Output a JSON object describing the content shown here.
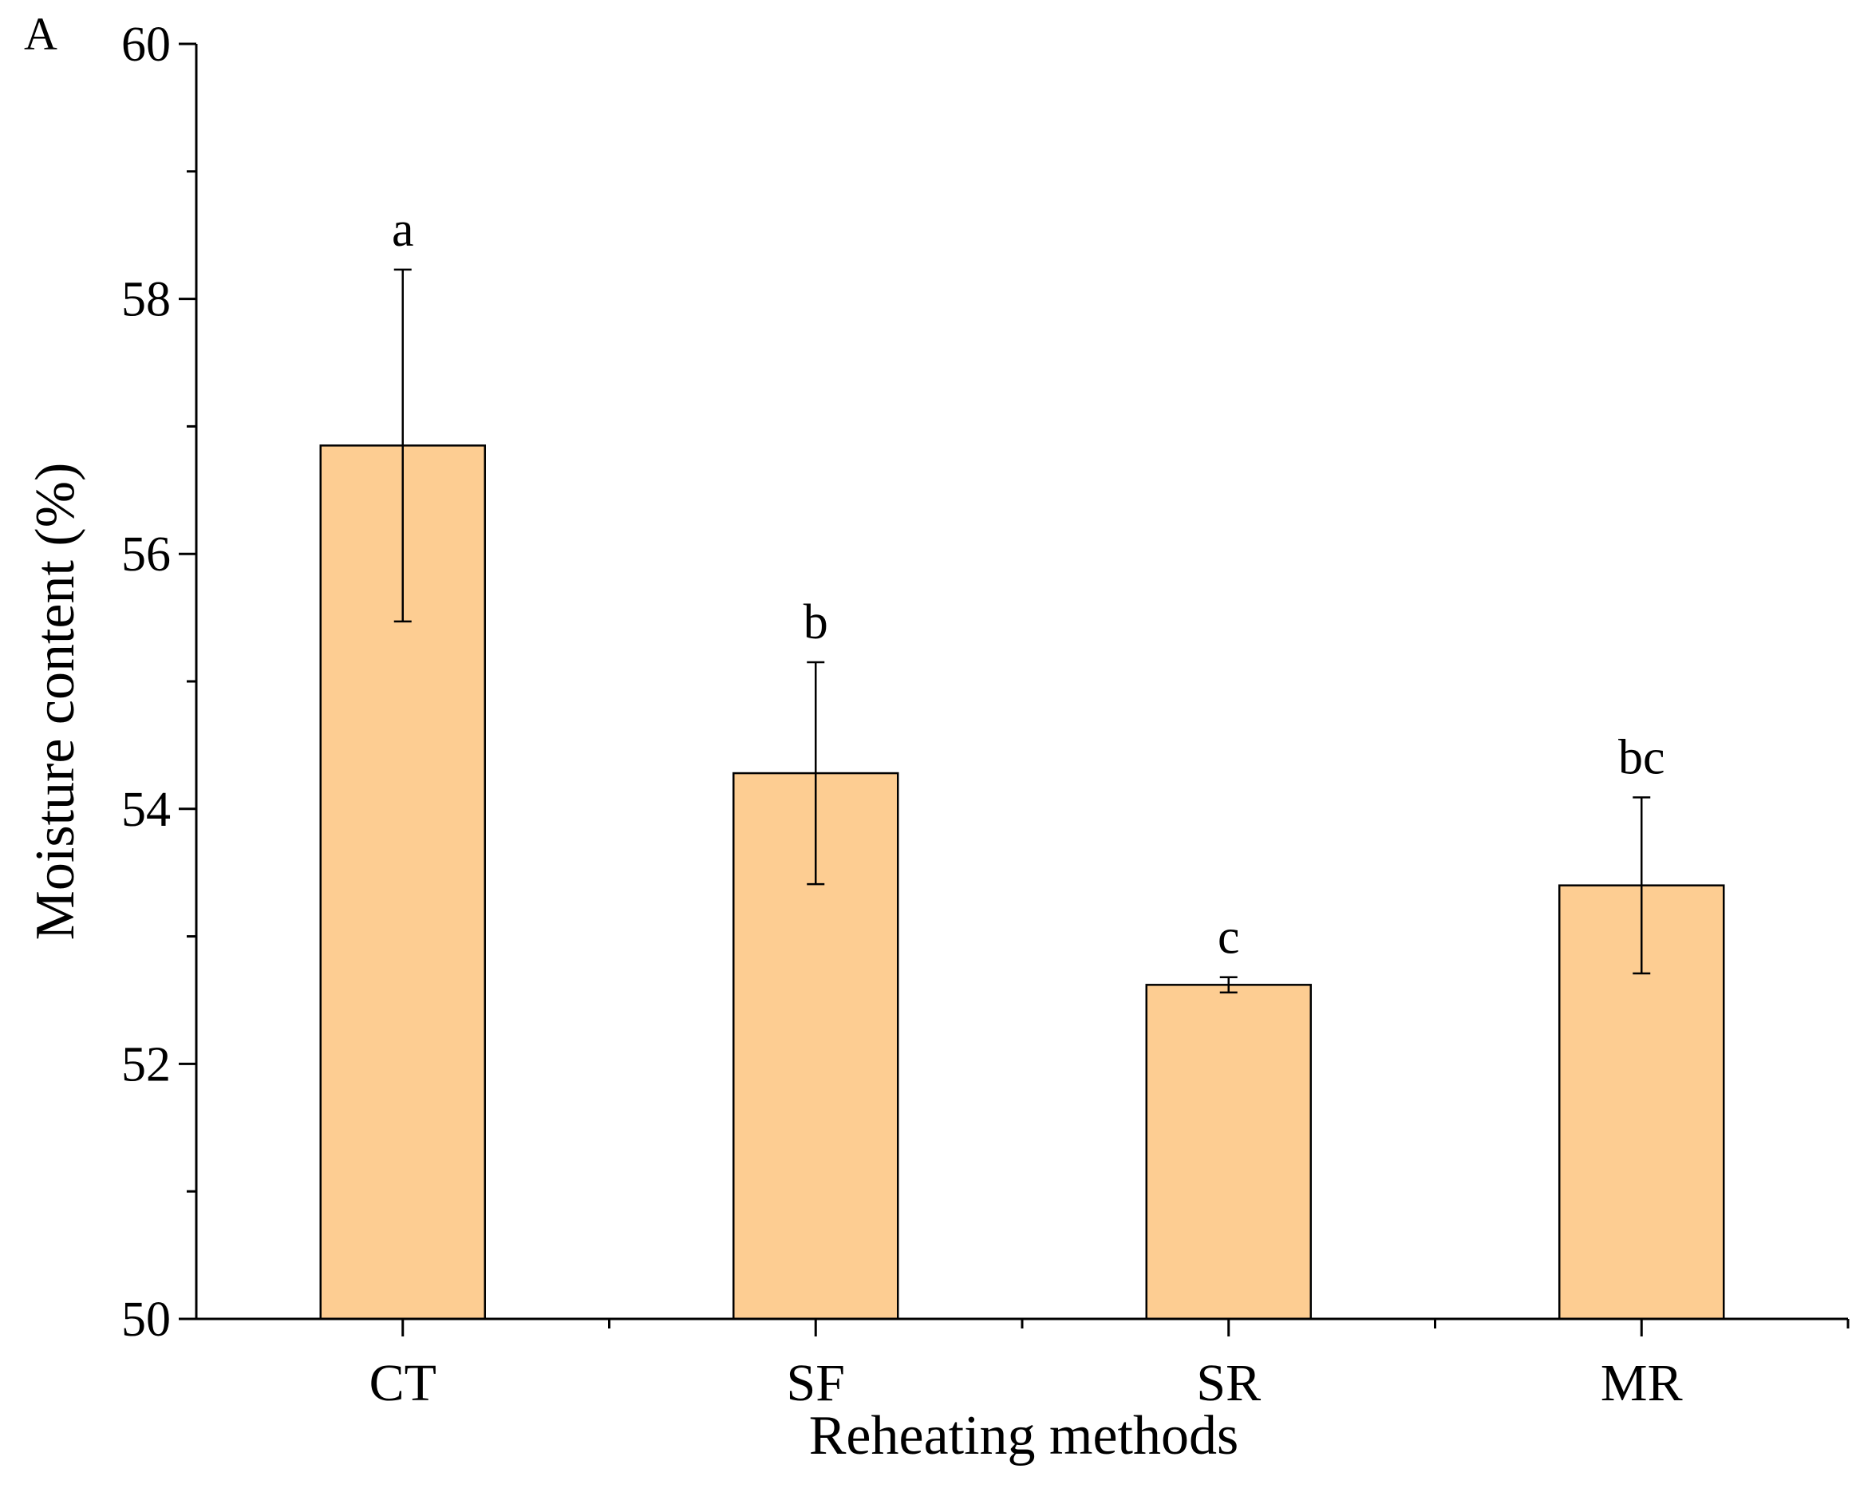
{
  "panel_label": "A",
  "colors": {
    "bar_fill": "#FDCD92",
    "bar_stroke": "#000000",
    "axis": "#000000"
  },
  "chart_data": {
    "type": "bar",
    "title": "",
    "xlabel": "Reheating methods",
    "ylabel": "Moisture content (%)",
    "ylim": [
      50,
      60
    ],
    "yticks": [
      50,
      52,
      54,
      56,
      58,
      60
    ],
    "y_minor_step": 1,
    "grid": false,
    "categories": [
      "CT",
      "SF",
      "SR",
      "MR"
    ],
    "series": [
      {
        "name": "Moisture content",
        "values": [
          56.85,
          54.28,
          52.62,
          53.4
        ],
        "errors": [
          1.38,
          0.87,
          0.06,
          0.69
        ]
      }
    ],
    "annotations": [
      "a",
      "b",
      "c",
      "bc"
    ]
  }
}
